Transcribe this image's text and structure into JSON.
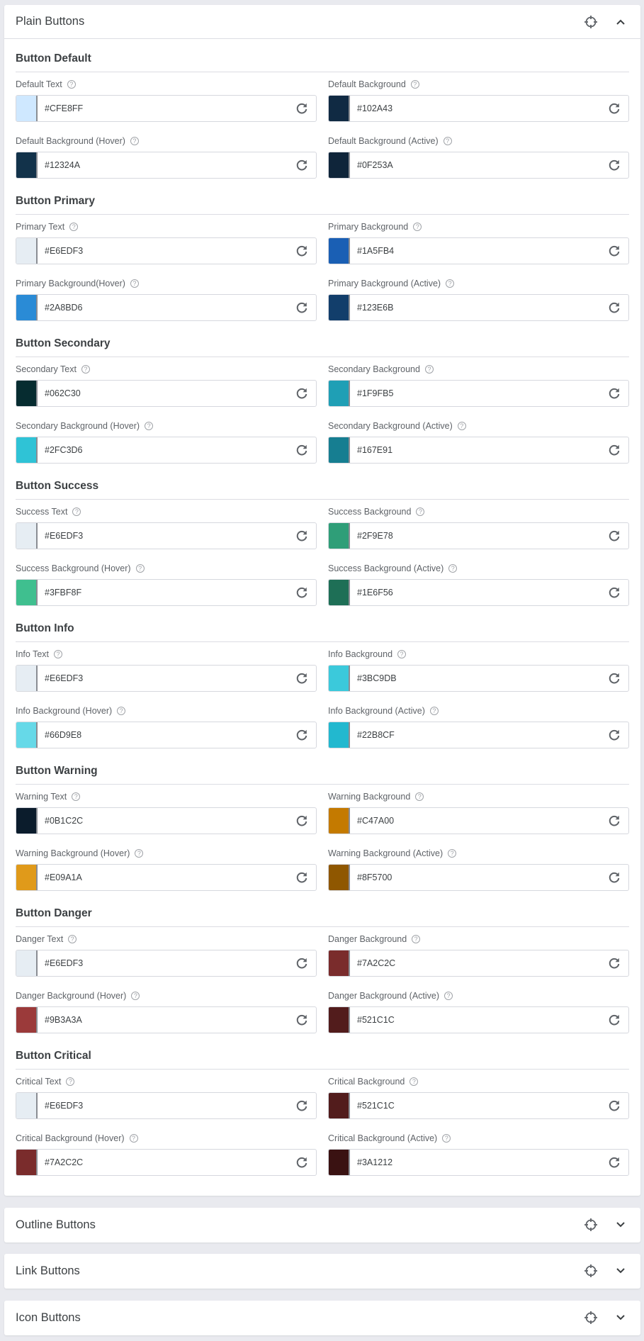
{
  "panels": [
    {
      "title": "Plain Buttons",
      "expanded": true,
      "icons": [
        "crosshair-icon",
        "chevron-up-icon"
      ]
    },
    {
      "title": "Outline Buttons",
      "expanded": false,
      "icons": [
        "crosshair-icon",
        "chevron-down-icon"
      ]
    },
    {
      "title": "Link Buttons",
      "expanded": false,
      "icons": [
        "crosshair-icon",
        "chevron-down-icon"
      ]
    },
    {
      "title": "Icon Buttons",
      "expanded": false,
      "icons": [
        "crosshair-icon",
        "chevron-down-icon"
      ]
    }
  ],
  "help_glyph": "?",
  "sections": [
    {
      "title": "Button Default",
      "fields": [
        {
          "label": "Default Text",
          "value": "#CFE8FF"
        },
        {
          "label": "Default Background",
          "value": "#102A43"
        },
        {
          "label": "Default Background (Hover)",
          "value": "#12324A"
        },
        {
          "label": "Default Background (Active)",
          "value": "#0F253A"
        }
      ]
    },
    {
      "title": "Button Primary",
      "fields": [
        {
          "label": "Primary Text",
          "value": "#E6EDF3"
        },
        {
          "label": "Primary Background",
          "value": "#1A5FB4"
        },
        {
          "label": "Primary Background(Hover)",
          "value": "#2A8BD6"
        },
        {
          "label": "Primary Background (Active)",
          "value": "#123E6B"
        }
      ]
    },
    {
      "title": "Button Secondary",
      "fields": [
        {
          "label": "Secondary Text",
          "value": "#062C30"
        },
        {
          "label": "Secondary Background",
          "value": "#1F9FB5"
        },
        {
          "label": "Secondary Background (Hover)",
          "value": "#2FC3D6"
        },
        {
          "label": "Secondary Background (Active)",
          "value": "#167E91"
        }
      ]
    },
    {
      "title": "Button Success",
      "fields": [
        {
          "label": "Success Text",
          "value": "#E6EDF3"
        },
        {
          "label": "Success Background",
          "value": "#2F9E78"
        },
        {
          "label": "Success Background (Hover)",
          "value": "#3FBF8F"
        },
        {
          "label": "Success Background (Active)",
          "value": "#1E6F56"
        }
      ]
    },
    {
      "title": "Button Info",
      "fields": [
        {
          "label": "Info Text",
          "value": "#E6EDF3"
        },
        {
          "label": "Info Background",
          "value": "#3BC9DB"
        },
        {
          "label": "Info Background (Hover)",
          "value": "#66D9E8"
        },
        {
          "label": "Info Background (Active)",
          "value": "#22B8CF"
        }
      ]
    },
    {
      "title": "Button Warning",
      "fields": [
        {
          "label": "Warning Text",
          "value": "#0B1C2C"
        },
        {
          "label": "Warning Background",
          "value": "#C47A00"
        },
        {
          "label": "Warning Background (Hover)",
          "value": "#E09A1A"
        },
        {
          "label": "Warning Background (Active)",
          "value": "#8F5700"
        }
      ]
    },
    {
      "title": "Button Danger",
      "fields": [
        {
          "label": "Danger Text",
          "value": "#E6EDF3"
        },
        {
          "label": "Danger Background",
          "value": "#7A2C2C"
        },
        {
          "label": "Danger Background (Hover)",
          "value": "#9B3A3A"
        },
        {
          "label": "Danger Background (Active)",
          "value": "#521C1C"
        }
      ]
    },
    {
      "title": "Button Critical",
      "fields": [
        {
          "label": "Critical Text",
          "value": "#E6EDF3"
        },
        {
          "label": "Critical Background",
          "value": "#521C1C"
        },
        {
          "label": "Critical Background (Hover)",
          "value": "#7A2C2C"
        },
        {
          "label": "Critical Background (Active)",
          "value": "#3A1212"
        }
      ]
    }
  ]
}
